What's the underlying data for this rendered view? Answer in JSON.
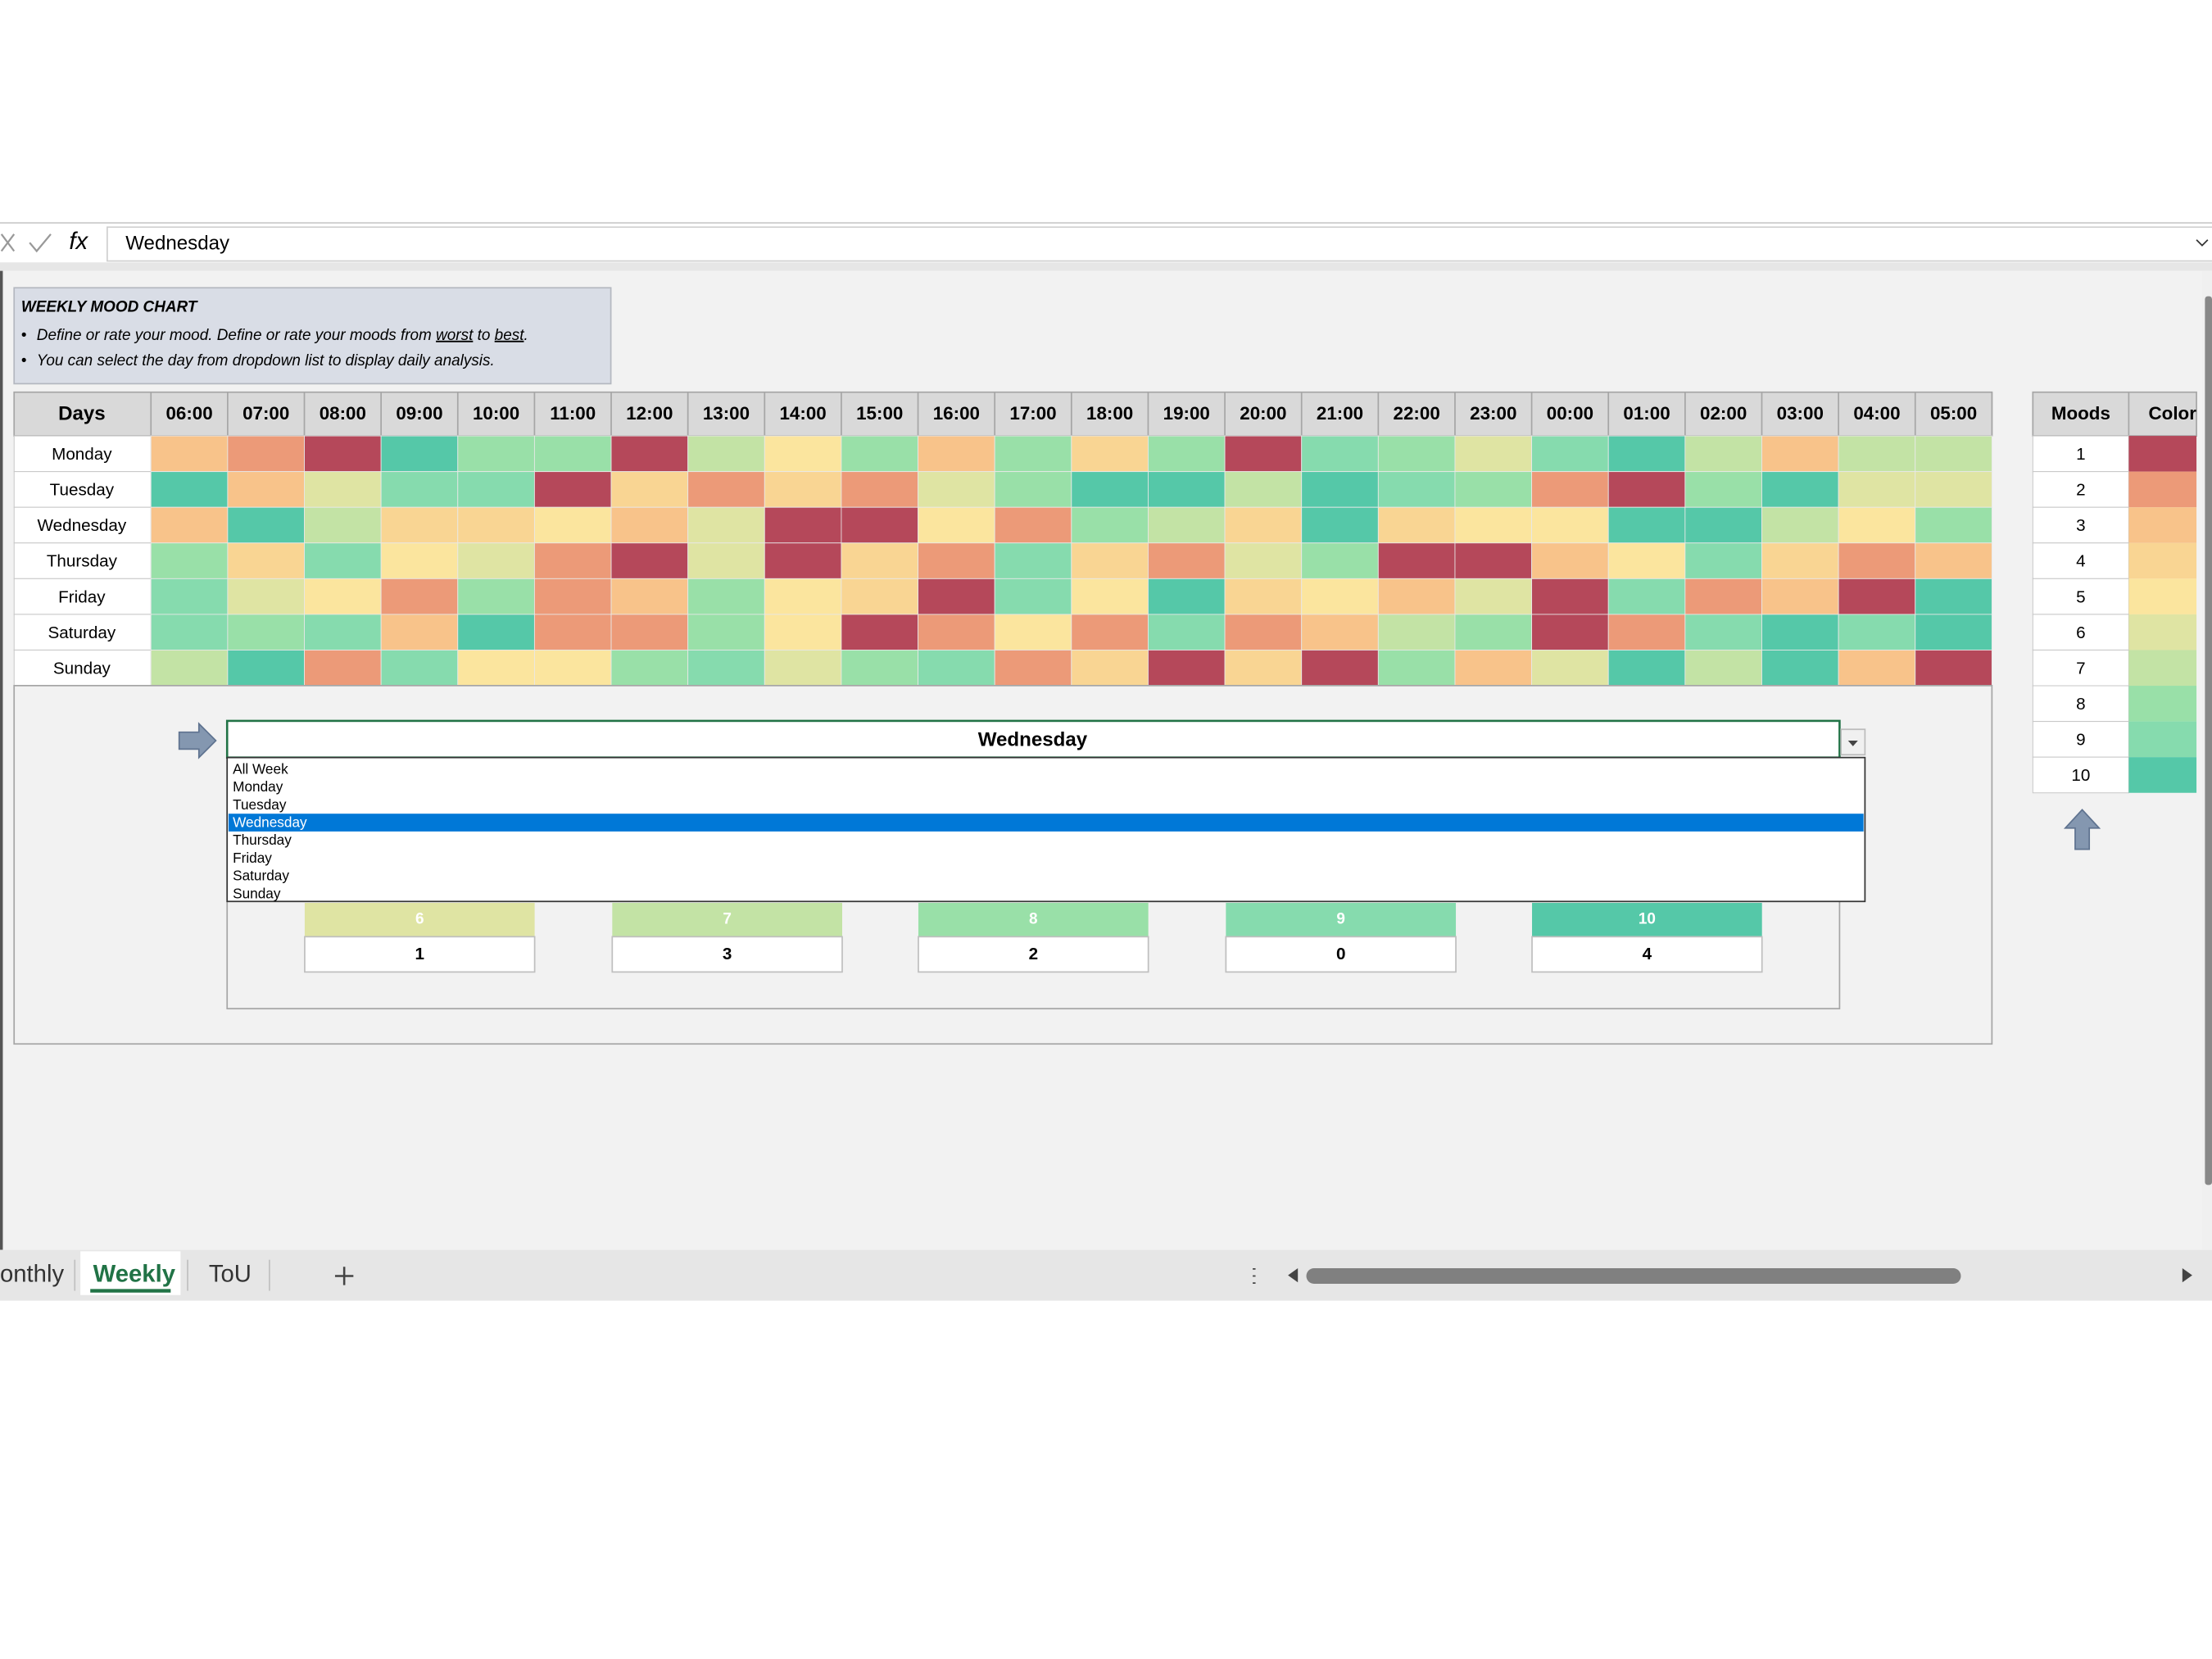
{
  "formula_bar": {
    "fx": "fx",
    "value": "Wednesday"
  },
  "info": {
    "title": "WEEKLY MOOD CHART",
    "line1": [
      "Define or rate your mood. Define or rate your moods from ",
      "worst",
      " to ",
      "best",
      "."
    ],
    "line2": "You can select the day from dropdown list to display daily analysis."
  },
  "heatmap": {
    "corner": "Days",
    "hours": [
      "06:00",
      "07:00",
      "08:00",
      "09:00",
      "10:00",
      "11:00",
      "12:00",
      "13:00",
      "14:00",
      "15:00",
      "16:00",
      "17:00",
      "18:00",
      "19:00",
      "20:00",
      "21:00",
      "22:00",
      "23:00",
      "00:00",
      "01:00",
      "02:00",
      "03:00",
      "04:00",
      "05:00"
    ],
    "rows": [
      {
        "day": "Monday",
        "values": [
          3,
          2,
          1,
          10,
          8,
          8,
          1,
          7,
          5,
          8,
          3,
          8,
          4,
          8,
          1,
          9,
          8,
          6,
          9,
          10,
          7,
          3,
          7,
          7
        ]
      },
      {
        "day": "Tuesday",
        "values": [
          10,
          3,
          6,
          9,
          9,
          1,
          4,
          2,
          4,
          2,
          6,
          8,
          10,
          10,
          7,
          10,
          9,
          8,
          2,
          1,
          8,
          10,
          6,
          6
        ]
      },
      {
        "day": "Wednesday",
        "values": [
          3,
          10,
          7,
          4,
          4,
          5,
          3,
          6,
          1,
          1,
          5,
          2,
          8,
          7,
          4,
          10,
          4,
          5,
          5,
          10,
          10,
          7,
          5,
          8
        ]
      },
      {
        "day": "Thursday",
        "values": [
          8,
          4,
          9,
          5,
          6,
          2,
          1,
          6,
          1,
          4,
          2,
          9,
          4,
          2,
          6,
          8,
          1,
          1,
          3,
          5,
          9,
          4,
          2,
          3
        ]
      },
      {
        "day": "Friday",
        "values": [
          9,
          6,
          5,
          2,
          8,
          2,
          3,
          8,
          5,
          4,
          1,
          9,
          5,
          10,
          4,
          5,
          3,
          6,
          1,
          9,
          2,
          3,
          1,
          10
        ]
      },
      {
        "day": "Saturday",
        "values": [
          9,
          8,
          9,
          3,
          10,
          2,
          2,
          8,
          5,
          1,
          2,
          5,
          2,
          9,
          2,
          3,
          7,
          8,
          1,
          2,
          9,
          10,
          9,
          10
        ]
      },
      {
        "day": "Sunday",
        "values": [
          7,
          10,
          2,
          9,
          5,
          5,
          8,
          9,
          6,
          8,
          9,
          2,
          4,
          1,
          4,
          1,
          8,
          3,
          6,
          10,
          7,
          10,
          3,
          1
        ]
      }
    ]
  },
  "moods": {
    "header": "Moods",
    "color_header": "Color",
    "levels": [
      1,
      2,
      3,
      4,
      5,
      6,
      7,
      8,
      9,
      10
    ],
    "colors": [
      "#b5485a",
      "#ec9a78",
      "#f8c38a",
      "#f9d593",
      "#fbe59e",
      "#dfe4a3",
      "#c3e3a5",
      "#99e0a8",
      "#86dbae",
      "#55c8a8"
    ]
  },
  "summary": {
    "selected": "Wednesday",
    "options": [
      "All Week",
      "Monday",
      "Tuesday",
      "Wednesday",
      "Thursday",
      "Friday",
      "Saturday",
      "Sunday"
    ],
    "moods": [
      6,
      7,
      8,
      9,
      10
    ],
    "counts": [
      1,
      3,
      2,
      0,
      4
    ]
  },
  "tabs": {
    "names": [
      "onthly",
      "Weekly",
      "ToU"
    ],
    "active": "Weekly"
  }
}
